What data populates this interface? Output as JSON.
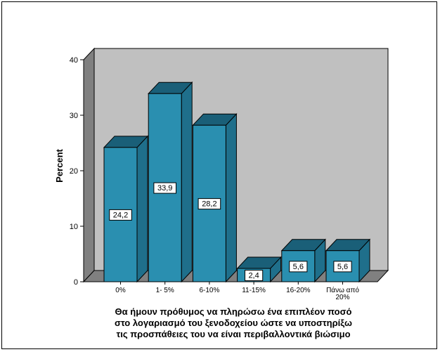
{
  "chart_data": {
    "type": "bar",
    "categories": [
      "0%",
      "1- 5%",
      "6-10%",
      "11-15%",
      "16-20%",
      "Πάνω από 20%"
    ],
    "values": [
      24.2,
      33.9,
      28.2,
      2.4,
      5.6,
      5.6
    ],
    "data_labels": [
      "24,2",
      "33,9",
      "28,2",
      "2,4",
      "5,6",
      "5,6"
    ],
    "ylabel": "Percent",
    "xlabel_lines": [
      "Θα ήμουν πρόθυμος να πληρώσω ένα επιπλέον ποσό",
      "στο λογαριασμό του ξενοδοχείου ώστε να υποστηρίξω",
      "τις προσπάθειες του να είναι περιβαλλοντικά βιώσιμο"
    ],
    "ylim": [
      0,
      40
    ],
    "yticks": [
      0,
      10,
      20,
      30,
      40
    ],
    "grid": false,
    "legend": "none",
    "style_3d": true,
    "colors": {
      "bar_front": "#2a8fb0",
      "bar_top": "#1a5f78",
      "bar_side": "#1f6f8b",
      "wall_back": "#c0c0c0",
      "wall_side": "#808080",
      "floor": "#808080"
    }
  }
}
